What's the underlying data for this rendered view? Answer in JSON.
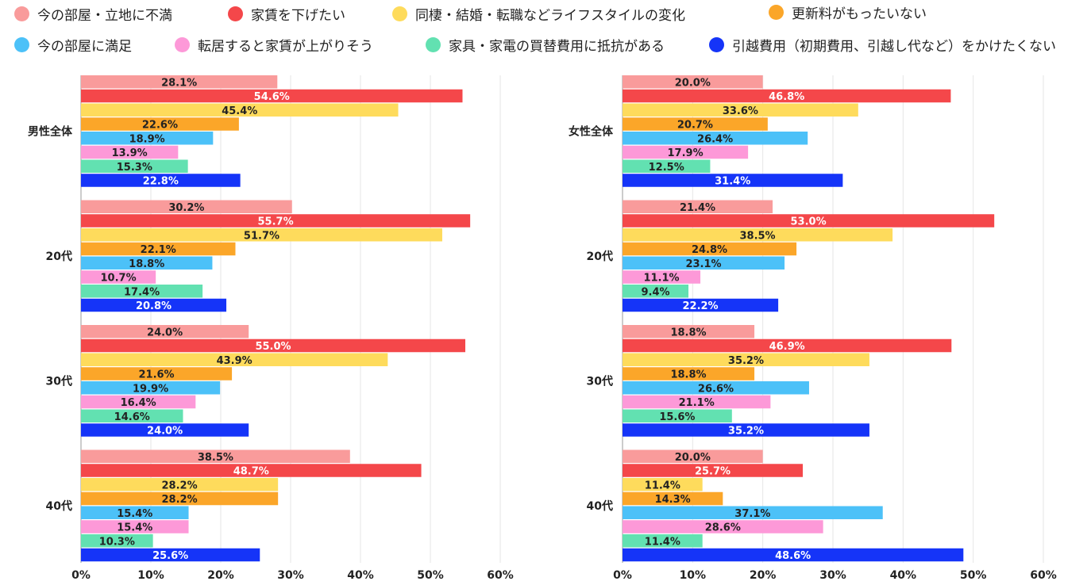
{
  "chart_data": [
    {
      "type": "bar",
      "orientation": "horizontal",
      "panel": "男性",
      "categories": [
        "男性全体",
        "20代",
        "30代",
        "40代"
      ],
      "xlim": [
        0,
        60
      ],
      "xticks": [
        "0%",
        "10%",
        "20%",
        "30%",
        "40%",
        "50%",
        "60%"
      ],
      "series": [
        {
          "name": "今の部屋・立地に不満",
          "values": [
            28.1,
            30.2,
            24.0,
            38.5
          ]
        },
        {
          "name": "家賃を下げたい",
          "values": [
            54.6,
            55.7,
            55.0,
            48.7
          ]
        },
        {
          "name": "同棲・結婚・転職などライフスタイルの変化",
          "values": [
            45.4,
            51.7,
            43.9,
            28.2
          ]
        },
        {
          "name": "更新料がもったいない",
          "values": [
            22.6,
            22.1,
            21.6,
            28.2
          ]
        },
        {
          "name": "今の部屋に満足",
          "values": [
            18.9,
            18.8,
            19.9,
            15.4
          ]
        },
        {
          "name": "転居すると家賃が上がりそう",
          "values": [
            13.9,
            10.7,
            16.4,
            15.4
          ]
        },
        {
          "name": "家具・家電の買替費用に抵抗がある",
          "values": [
            15.3,
            17.4,
            14.6,
            10.3
          ]
        },
        {
          "name": "引越費用（初期費用、引越し代など）をかけたくない",
          "values": [
            22.8,
            20.8,
            24.0,
            25.6
          ]
        }
      ],
      "value_labels": [
        [
          "28.1%",
          "54.6%",
          "45.4%",
          "22.6%",
          "18.9%",
          "13.9%",
          "15.3%",
          "22.8%"
        ],
        [
          "30.2%",
          "55.7%",
          "51.7%",
          "22.1%",
          "18.8%",
          "10.7%",
          "17.4%",
          "20.8%"
        ],
        [
          "24.0%",
          "55.0%",
          "43.9%",
          "21.6%",
          "19.9%",
          "16.4%",
          "14.6%",
          "24.0%"
        ],
        [
          "38.5%",
          "48.7%",
          "28.2%",
          "28.2%",
          "15.4%",
          "15.4%",
          "10.3%",
          "25.6%"
        ]
      ]
    },
    {
      "type": "bar",
      "orientation": "horizontal",
      "panel": "女性",
      "categories": [
        "女性全体",
        "20代",
        "30代",
        "40代"
      ],
      "xlim": [
        0,
        60
      ],
      "xticks": [
        "0%",
        "10%",
        "20%",
        "30%",
        "40%",
        "50%",
        "60%"
      ],
      "series": [
        {
          "name": "今の部屋・立地に不満",
          "values": [
            20.0,
            21.4,
            18.8,
            20.0
          ]
        },
        {
          "name": "家賃を下げたい",
          "values": [
            46.8,
            53.0,
            46.9,
            25.7
          ]
        },
        {
          "name": "同棲・結婚・転職などライフスタイルの変化",
          "values": [
            33.6,
            38.5,
            35.2,
            11.4
          ]
        },
        {
          "name": "更新料がもったいない",
          "values": [
            20.7,
            24.8,
            18.8,
            14.3
          ]
        },
        {
          "name": "今の部屋に満足",
          "values": [
            26.4,
            23.1,
            26.6,
            37.1
          ]
        },
        {
          "name": "転居すると家賃が上がりそう",
          "values": [
            17.9,
            11.1,
            21.1,
            28.6
          ]
        },
        {
          "name": "家具・家電の買替費用に抵抗がある",
          "values": [
            12.5,
            9.4,
            15.6,
            11.4
          ]
        },
        {
          "name": "引越費用（初期費用、引越し代など）をかけたくない",
          "values": [
            31.4,
            22.2,
            35.2,
            48.6
          ]
        }
      ],
      "value_labels": [
        [
          "20.0%",
          "46.8%",
          "33.6%",
          "20.7%",
          "26.4%",
          "17.9%",
          "12.5%",
          "31.4%"
        ],
        [
          "21.4%",
          "53.0%",
          "38.5%",
          "24.8%",
          "23.1%",
          "11.1%",
          "9.4%",
          "22.2%"
        ],
        [
          "18.8%",
          "46.9%",
          "35.2%",
          "18.8%",
          "26.6%",
          "21.1%",
          "15.6%",
          "35.2%"
        ],
        [
          "20.0%",
          "25.7%",
          "11.4%",
          "14.3%",
          "37.1%",
          "28.6%",
          "11.4%",
          "48.6%"
        ]
      ]
    }
  ],
  "legend": [
    {
      "label": "今の部屋・立地に不満",
      "color": "#f99b9b"
    },
    {
      "label": "家賃を下げたい",
      "color": "#f4474a"
    },
    {
      "label": "同棲・結婚・転職などライフスタイルの変化",
      "color": "#fedb5c"
    },
    {
      "label": "更新料がもったいない",
      "color": "#fba629"
    },
    {
      "label": "今の部屋に満足",
      "color": "#4cc1f8"
    },
    {
      "label": "転居すると家賃が上がりそう",
      "color": "#fd99d8"
    },
    {
      "label": "家具・家電の買替費用に抵抗がある",
      "color": "#62e1b1"
    },
    {
      "label": "引越費用（初期費用、引越し代など）をかけたくない",
      "color": "#1534f8"
    }
  ],
  "colors": {
    "grid": "#e6e6e6",
    "axis": "#9a9a9a",
    "label_dark": "#222222",
    "label_light": "#ffffff"
  }
}
